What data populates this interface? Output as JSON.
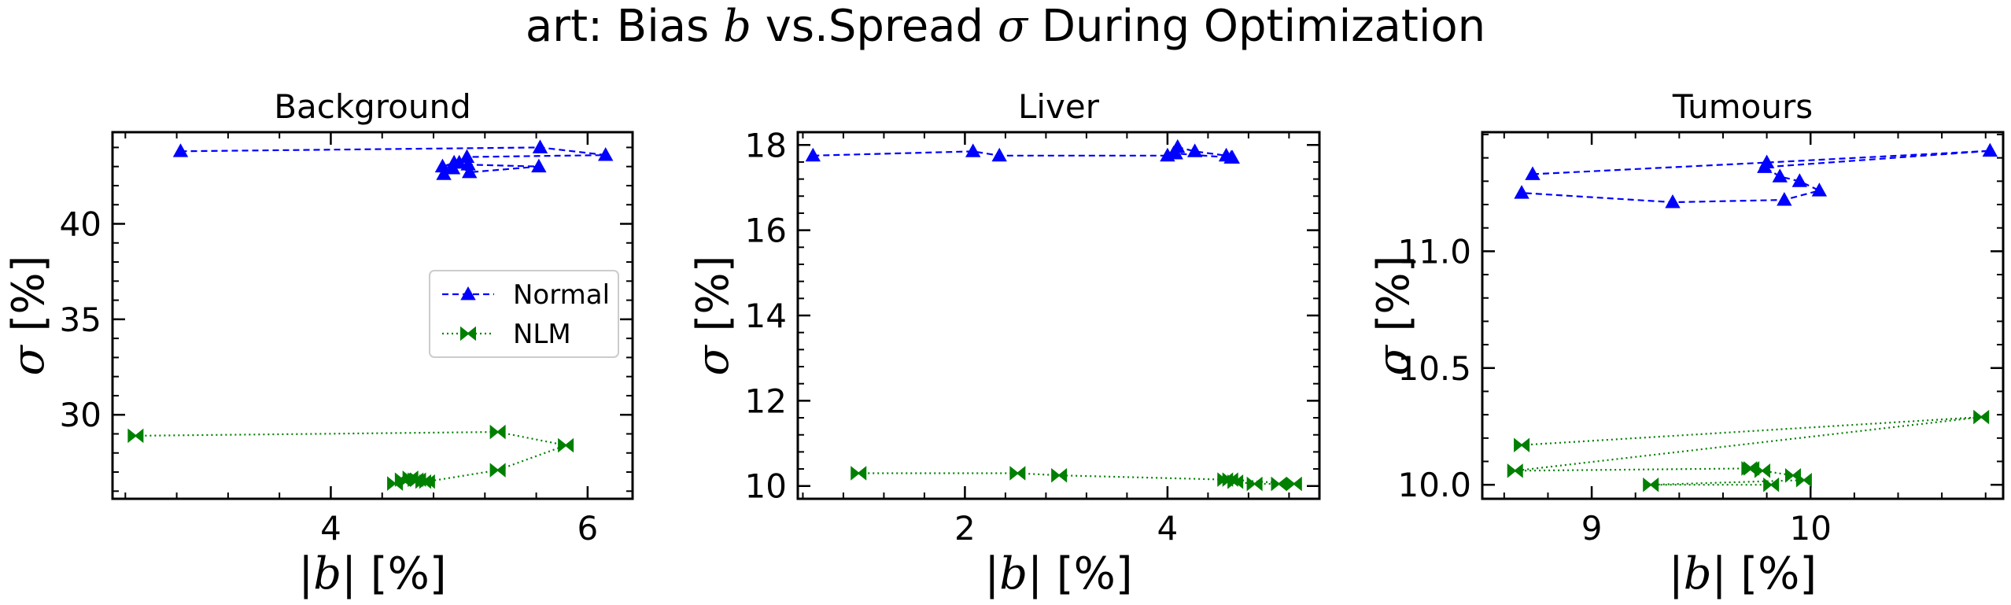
{
  "figure": {
    "title_prefix": "art: Bias ",
    "title_b": "b",
    "title_mid": " vs.Spread ",
    "title_sigma": "σ",
    "title_suffix": " During Optimization"
  },
  "axis_text": {
    "xlabel_left": "|",
    "xlabel_var": "b",
    "xlabel_right": "| [%]",
    "ylabel_var": "σ",
    "ylabel_unit": " [%]"
  },
  "legend": {
    "placement": "right-middle of first panel",
    "entries": [
      {
        "label": "Normal",
        "color": "#0000ff",
        "marker": "triangle",
        "linestyle": "dashed"
      },
      {
        "label": "NLM",
        "color": "#008000",
        "marker": "bowtie",
        "linestyle": "dotted"
      }
    ]
  },
  "chart_data": [
    {
      "type": "line",
      "title": "Background",
      "xlim": [
        2.3,
        6.35
      ],
      "ylim": [
        25.6,
        44.8
      ],
      "xticks": [
        4,
        6
      ],
      "yticks": [
        30,
        35,
        40
      ],
      "series": [
        {
          "name": "Normal",
          "color": "#0000ff",
          "x": [
            2.83,
            5.63,
            6.14,
            5.06,
            5.0,
            4.87,
            4.96,
            5.08,
            5.62,
            5.07,
            4.95,
            4.88
          ],
          "y": [
            43.8,
            44.0,
            43.6,
            43.5,
            43.2,
            43.0,
            43.2,
            42.7,
            43.0,
            43.1,
            42.9,
            42.6
          ]
        },
        {
          "name": "NLM",
          "color": "#008000",
          "x": [
            2.48,
            5.3,
            5.83,
            5.3,
            4.75,
            4.68,
            4.62,
            4.56,
            4.5,
            4.66,
            4.72
          ],
          "y": [
            28.9,
            29.1,
            28.4,
            27.1,
            26.5,
            26.6,
            26.7,
            26.6,
            26.4,
            26.6,
            26.5
          ]
        }
      ]
    },
    {
      "type": "line",
      "title": "Liver",
      "xlim": [
        0.35,
        5.5
      ],
      "ylim": [
        9.7,
        18.3
      ],
      "xticks": [
        2,
        4
      ],
      "yticks": [
        10,
        12,
        14,
        16,
        18
      ],
      "series": [
        {
          "name": "Normal",
          "color": "#0000ff",
          "x": [
            0.5,
            2.08,
            2.34,
            4.0,
            4.06,
            4.1,
            4.27,
            4.58,
            4.63,
            4.64,
            4.08
          ],
          "y": [
            17.75,
            17.85,
            17.75,
            17.75,
            17.8,
            17.95,
            17.85,
            17.75,
            17.7,
            17.7,
            17.8
          ]
        },
        {
          "name": "NLM",
          "color": "#008000",
          "x": [
            0.95,
            2.52,
            2.93,
            4.57,
            4.67,
            4.86,
            5.1,
            5.25,
            4.62
          ],
          "y": [
            10.3,
            10.3,
            10.25,
            10.15,
            10.1,
            10.05,
            10.05,
            10.05,
            10.15
          ]
        }
      ]
    },
    {
      "type": "line",
      "title": "Tumours",
      "xlim": [
        8.5,
        10.88
      ],
      "ylim": [
        9.94,
        11.51
      ],
      "xticks": [
        9,
        10
      ],
      "yticks": [
        10.0,
        10.5,
        11.0
      ],
      "series": [
        {
          "name": "Normal",
          "color": "#0000ff",
          "x": [
            8.73,
            9.8,
            10.82,
            9.79,
            9.86,
            9.95,
            10.04,
            9.88,
            9.37,
            8.68
          ],
          "y": [
            11.33,
            11.38,
            11.43,
            11.36,
            11.32,
            11.3,
            11.26,
            11.22,
            11.21,
            11.25
          ]
        },
        {
          "name": "NLM",
          "color": "#008000",
          "x": [
            8.68,
            10.78,
            8.65,
            9.72,
            9.73,
            9.78,
            9.92,
            9.97,
            9.27,
            9.82
          ],
          "y": [
            10.17,
            10.29,
            10.06,
            10.07,
            10.07,
            10.06,
            10.04,
            10.02,
            10.0,
            10.0
          ]
        }
      ]
    }
  ]
}
